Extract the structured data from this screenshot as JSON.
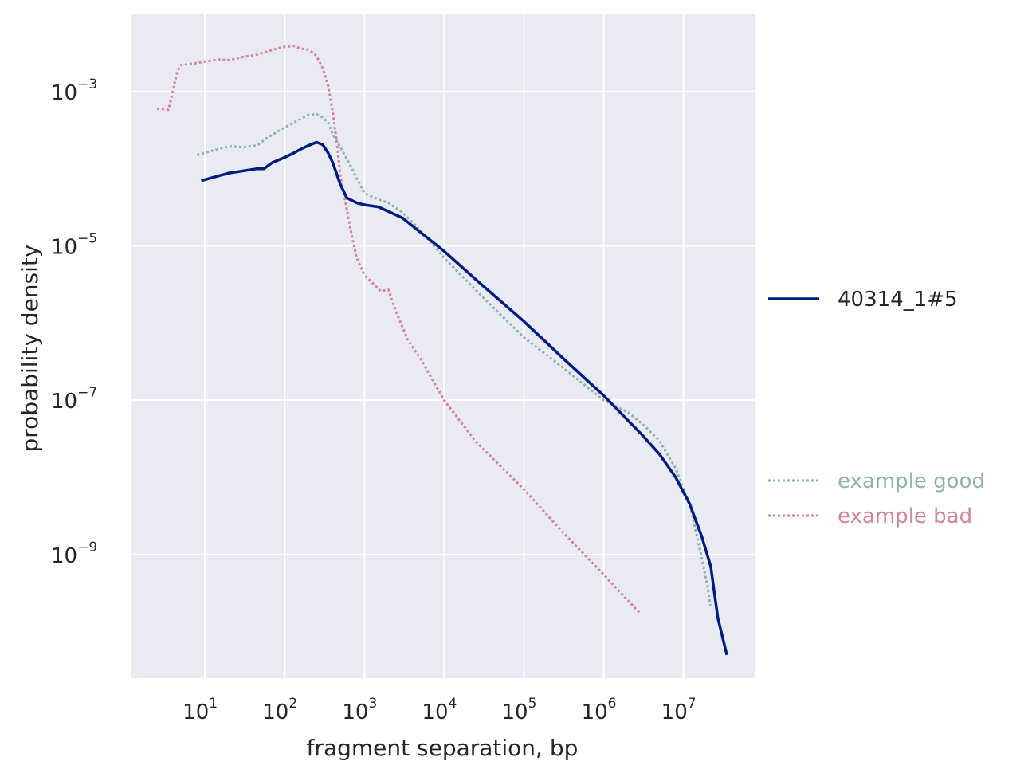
{
  "chart_data": {
    "type": "line",
    "title": "",
    "xlabel": "fragment separation, bp",
    "ylabel": "probability density",
    "xscale": "log",
    "yscale": "log",
    "xlim": [
      1.2,
      80000000.0
    ],
    "ylim": [
      2.5e-11,
      0.01
    ],
    "grid": true,
    "legend_placement": "right",
    "x_ticks": [
      {
        "base": "10",
        "exp": "1",
        "value": 10
      },
      {
        "base": "10",
        "exp": "2",
        "value": 100
      },
      {
        "base": "10",
        "exp": "3",
        "value": 1000
      },
      {
        "base": "10",
        "exp": "4",
        "value": 10000
      },
      {
        "base": "10",
        "exp": "5",
        "value": 100000
      },
      {
        "base": "10",
        "exp": "6",
        "value": 1000000
      },
      {
        "base": "10",
        "exp": "7",
        "value": 10000000
      }
    ],
    "y_ticks": [
      {
        "base": "10",
        "exp": "−3",
        "value": 0.001
      },
      {
        "base": "10",
        "exp": "−5",
        "value": 1e-05
      },
      {
        "base": "10",
        "exp": "−7",
        "value": 1e-07
      },
      {
        "base": "10",
        "exp": "−9",
        "value": 1e-09
      }
    ],
    "series": [
      {
        "name": "example good",
        "color": "#8fb3ae",
        "style": "dotted",
        "x": [
          8,
          12,
          20,
          30,
          45,
          60,
          80,
          110,
          150,
          200,
          250,
          300,
          350,
          400,
          500,
          700,
          1000,
          1500,
          2000,
          3000,
          5000,
          10000,
          30000,
          100000,
          300000,
          1000000,
          2000000,
          3000000,
          5000000,
          8000000,
          12000000,
          16000000,
          20000000,
          22000000
        ],
        "y": [
          0.00015,
          0.00017,
          0.000195,
          0.00019,
          0.0002,
          0.00025,
          0.0003,
          0.00036,
          0.00043,
          0.0005,
          0.00051,
          0.00046,
          0.0004,
          0.00028,
          0.00019,
          0.0001,
          4.8e-05,
          4e-05,
          3.6e-05,
          2.7e-05,
          1.6e-05,
          7e-06,
          2.2e-06,
          6.5e-07,
          2.7e-07,
          1e-07,
          7e-08,
          5e-08,
          3e-08,
          1.3e-08,
          4.5e-09,
          1.2e-09,
          4e-10,
          2e-10
        ]
      },
      {
        "name": "example bad",
        "color": "#d4839f",
        "style": "dotted",
        "x": [
          2.5,
          3.5,
          4.5,
          5,
          7,
          10,
          15,
          20,
          30,
          45,
          60,
          80,
          100,
          130,
          160,
          200,
          250,
          300,
          350,
          400,
          450,
          500,
          600,
          700,
          800,
          1000,
          1300,
          1600,
          2000,
          2500,
          3500,
          5000,
          10000,
          25000,
          100000,
          300000,
          1000000,
          2900000
        ],
        "y": [
          0.0006,
          0.00058,
          0.0018,
          0.0022,
          0.0023,
          0.00245,
          0.0026,
          0.00255,
          0.0028,
          0.003,
          0.0033,
          0.0036,
          0.0038,
          0.0039,
          0.0036,
          0.0035,
          0.0029,
          0.002,
          0.0012,
          0.00055,
          0.00022,
          8e-05,
          3e-05,
          1.3e-05,
          7e-06,
          4.2e-06,
          3.2e-06,
          2.6e-06,
          2.7e-06,
          1.4e-06,
          6e-07,
          3.5e-07,
          1e-07,
          2.9e-08,
          7e-09,
          2e-09,
          5.5e-10,
          1.7e-10
        ]
      },
      {
        "name": "40314_1#5",
        "color": "#001c7f",
        "style": "solid",
        "x": [
          9,
          20,
          45,
          55,
          70,
          100,
          130,
          160,
          200,
          250,
          300,
          350,
          400,
          450,
          500,
          600,
          800,
          1000,
          1500,
          3000,
          10000,
          30000,
          100000,
          300000,
          1000000,
          2000000,
          3000000,
          5000000,
          8000000,
          12000000,
          17000000,
          22000000,
          27000000,
          35000000
        ],
        "y": [
          7e-05,
          8.8e-05,
          0.0001,
          0.0001,
          0.00012,
          0.00014,
          0.00016,
          0.00018,
          0.0002,
          0.00022,
          0.000205,
          0.00016,
          0.00012,
          8.5e-05,
          6.2e-05,
          4.2e-05,
          3.6e-05,
          3.4e-05,
          3.2e-05,
          2.3e-05,
          8.5e-06,
          3.1e-06,
          1.05e-06,
          3.6e-07,
          1.15e-07,
          5.5e-08,
          3.6e-08,
          2e-08,
          1e-08,
          4.5e-09,
          1.7e-09,
          7e-10,
          1.5e-10,
          5e-11
        ]
      }
    ],
    "legend": [
      {
        "label": "40314_1#5",
        "color": "#001c7f",
        "style": "solid",
        "text_color": "#262626"
      },
      {
        "label": "example good",
        "color": "#8fb3ae",
        "style": "dotted",
        "text_color": "#8fb3ae"
      },
      {
        "label": "example bad",
        "color": "#d4839f",
        "style": "dotted",
        "text_color": "#d4839f"
      }
    ]
  },
  "colors": {
    "plot_background": "#eaeaf2",
    "grid": "#ffffff",
    "text": "#262626"
  }
}
